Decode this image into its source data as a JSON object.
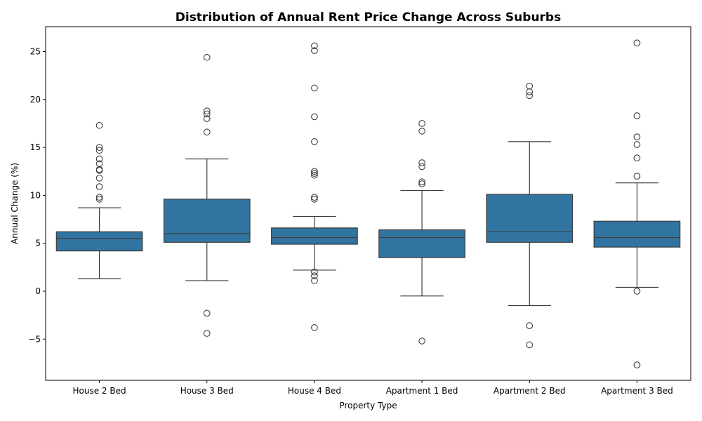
{
  "chart_data": {
    "type": "box",
    "title": "Distribution of Annual Rent Price Change Across Suburbs",
    "xlabel": "Property Type",
    "ylabel": "Annual Change (%)",
    "ylim": [
      -9.3,
      27.6
    ],
    "yticks": [
      -5,
      0,
      5,
      10,
      15,
      20,
      25
    ],
    "ytick_labels": [
      "−5",
      "0",
      "5",
      "10",
      "15",
      "20",
      "25"
    ],
    "grid": false,
    "box_color": "#3274a1",
    "line_color": "#3d3d3d",
    "categories": [
      "House 2 Bed",
      "House 3 Bed",
      "House 4 Bed",
      "Apartment 1 Bed",
      "Apartment 2 Bed",
      "Apartment 3 Bed"
    ],
    "boxes": [
      {
        "category": "House 2 Bed",
        "whisker_low": 1.3,
        "q1": 4.2,
        "median": 5.5,
        "q3": 6.2,
        "whisker_high": 8.7,
        "outliers": [
          17.3,
          15.0,
          14.7,
          13.8,
          13.3,
          12.7,
          12.6,
          11.8,
          10.9,
          9.8,
          9.6
        ]
      },
      {
        "category": "House 3 Bed",
        "whisker_low": 1.1,
        "q1": 5.1,
        "median": 6.0,
        "q3": 9.6,
        "whisker_high": 13.8,
        "outliers": [
          24.4,
          18.8,
          18.5,
          18.0,
          16.6,
          -2.3,
          -4.4
        ]
      },
      {
        "category": "House 4 Bed",
        "whisker_low": 2.2,
        "q1": 4.9,
        "median": 5.6,
        "q3": 6.6,
        "whisker_high": 7.8,
        "outliers": [
          25.6,
          25.1,
          21.2,
          18.2,
          15.6,
          12.5,
          12.3,
          12.1,
          9.8,
          9.6,
          2.0,
          1.6,
          1.1,
          -3.8
        ]
      },
      {
        "category": "Apartment 1 Bed",
        "whisker_low": -0.5,
        "q1": 3.5,
        "median": 5.6,
        "q3": 6.4,
        "whisker_high": 10.5,
        "outliers": [
          17.5,
          16.7,
          13.4,
          13.0,
          11.4,
          11.2,
          -5.2
        ]
      },
      {
        "category": "Apartment 2 Bed",
        "whisker_low": -1.5,
        "q1": 5.1,
        "median": 6.2,
        "q3": 10.1,
        "whisker_high": 15.6,
        "outliers": [
          21.4,
          20.8,
          20.4,
          -3.6,
          -5.6
        ]
      },
      {
        "category": "Apartment 3 Bed",
        "whisker_low": 0.4,
        "q1": 4.6,
        "median": 5.6,
        "q3": 7.3,
        "whisker_high": 11.3,
        "outliers": [
          25.9,
          18.3,
          16.1,
          15.3,
          13.9,
          12.0,
          0.0,
          -7.7
        ]
      }
    ]
  }
}
